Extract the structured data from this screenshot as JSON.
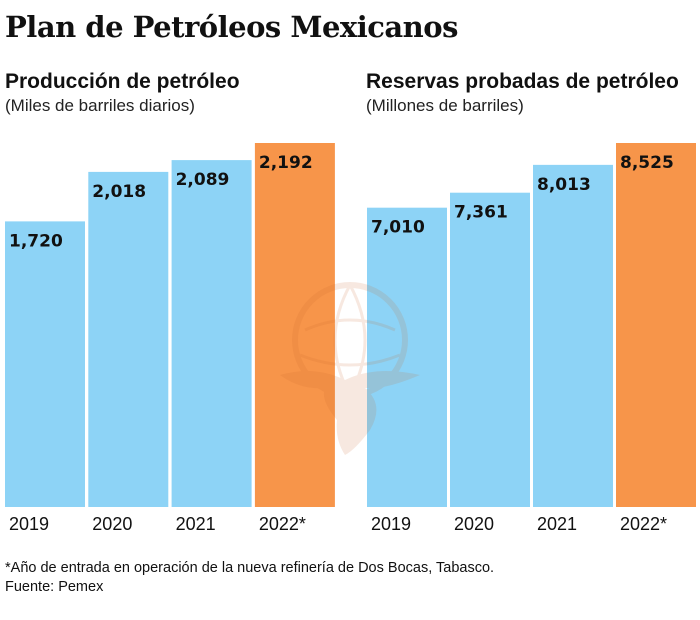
{
  "title": "Plan de Petróleos Mexicanos",
  "chart_data": [
    {
      "type": "bar",
      "title": "Producción de petróleo",
      "subtitle": "(Miles de barriles diarios)",
      "categories": [
        "2019",
        "2020",
        "2021",
        "2022*"
      ],
      "values": [
        1720,
        2018,
        2089,
        2192
      ],
      "value_labels": [
        "1,720",
        "2,018",
        "2,089",
        "2,192"
      ],
      "highlight_index": 3,
      "colors": {
        "default": "#8dd3f6",
        "highlight": "#f7954a"
      },
      "xlabel": "",
      "ylabel": "",
      "ylim": [
        0,
        2192
      ],
      "grid": false
    },
    {
      "type": "bar",
      "title": "Reservas probadas de petróleo",
      "subtitle": "(Millones de barriles)",
      "categories": [
        "2019",
        "2020",
        "2021",
        "2022*"
      ],
      "values": [
        7010,
        7361,
        8013,
        8525
      ],
      "value_labels": [
        "7,010",
        "7,361",
        "8,013",
        "8,525"
      ],
      "highlight_index": 3,
      "colors": {
        "default": "#8dd3f6",
        "highlight": "#f7954a"
      },
      "xlabel": "",
      "ylabel": "",
      "ylim": [
        0,
        8525
      ],
      "grid": false
    }
  ],
  "footnote": "*Año de entrada en operación de la nueva refinería de Dos Bocas, Tabasco.",
  "source": "Fuente: Pemex",
  "watermark_icon": "pemex-eagle-logo"
}
